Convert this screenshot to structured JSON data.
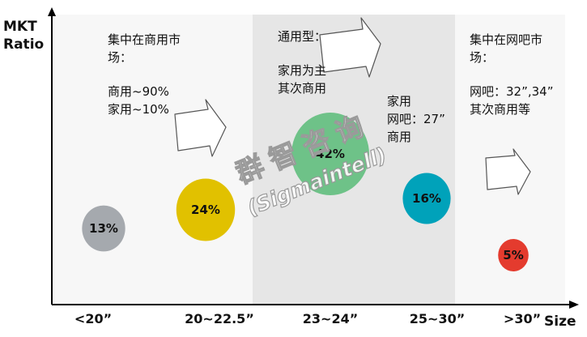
{
  "chart_data": {
    "type": "bubble",
    "ylabel": [
      "MKT",
      "Ratio"
    ],
    "xlabel": "Size",
    "categories": [
      "<20”",
      "20~22.5”",
      "23~24”",
      "25~30”",
      ">30”"
    ],
    "values": [
      13,
      24,
      42,
      16,
      5
    ],
    "value_labels": [
      "13%",
      "24%",
      "42%",
      "16%",
      "5%"
    ],
    "colors": [
      "#a5a9ae",
      "#e1c100",
      "#6ec288",
      "#00a2ba",
      "#e43b2e"
    ],
    "grid": false,
    "shaded_band": "23~24”"
  },
  "annotations": {
    "left_panel": {
      "title_line1": "集中在商用市",
      "title_line2": "场：",
      "detail_line1": "商用~90%",
      "detail_line2": "家用~10%"
    },
    "middle_panel": {
      "title_line1": "通用型：",
      "detail_line1": "家用为主",
      "detail_line2": "其次商用"
    },
    "mid_right_panel": {
      "line1": "家用",
      "line2": "网吧：27”",
      "line3": "商用"
    },
    "right_panel": {
      "title_line1": "集中在网吧市",
      "title_line2": "场：",
      "detail_line1": "网吧：32”,34”",
      "detail_line2": "其次商用等"
    }
  },
  "watermark": {
    "line1": "群智咨询",
    "line2": "(Sigmaintell)"
  },
  "colors": {
    "band_light": "#f7f7f7",
    "band_shaded": "#e6e6e6",
    "axis": "#000000"
  }
}
